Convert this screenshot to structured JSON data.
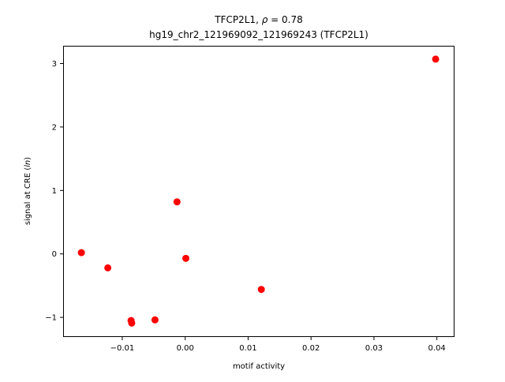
{
  "chart_data": {
    "type": "scatter",
    "title_line1_prefix": "TFCP2L1, ",
    "title_rho_symbol": "ρ",
    "title_rho_equals": " = 0.78",
    "title_line2": "hg19_chr2_121969092_121969243 (TFCP2L1)",
    "xlabel": "motif activity",
    "ylabel_prefix": "signal at CRE (",
    "ylabel_italic": "ln",
    "ylabel_suffix": ")",
    "xlim": [
      -0.0194,
      0.0428
    ],
    "ylim": [
      -1.31,
      3.28
    ],
    "xticks": [
      {
        "value": -0.01,
        "label": "−0.01"
      },
      {
        "value": 0.0,
        "label": "0.00"
      },
      {
        "value": 0.01,
        "label": "0.01"
      },
      {
        "value": 0.02,
        "label": "0.02"
      },
      {
        "value": 0.03,
        "label": "0.03"
      },
      {
        "value": 0.04,
        "label": "0.04"
      }
    ],
    "yticks": [
      {
        "value": -1,
        "label": "−1"
      },
      {
        "value": 0,
        "label": "0"
      },
      {
        "value": 1,
        "label": "1"
      },
      {
        "value": 2,
        "label": "2"
      },
      {
        "value": 3,
        "label": "3"
      }
    ],
    "points": [
      {
        "x": -0.0165,
        "y": 0.02
      },
      {
        "x": -0.0123,
        "y": -0.22
      },
      {
        "x": -0.0086,
        "y": -1.05
      },
      {
        "x": -0.0085,
        "y": -1.09
      },
      {
        "x": -0.0048,
        "y": -1.04
      },
      {
        "x": -0.0013,
        "y": 0.82
      },
      {
        "x": 0.0001,
        "y": -0.07
      },
      {
        "x": 0.0121,
        "y": -0.56
      },
      {
        "x": 0.0398,
        "y": 3.07
      }
    ],
    "marker_color": "#ff0000",
    "grid": false,
    "legend": "none"
  }
}
